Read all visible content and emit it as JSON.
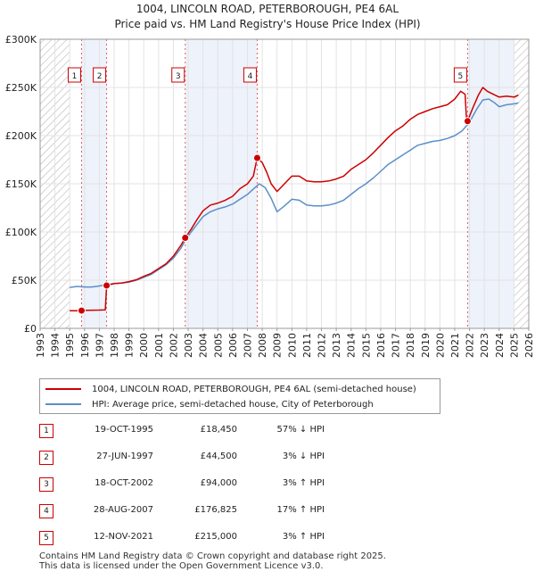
{
  "title_line1": "1004, LINCOLN ROAD, PETERBOROUGH, PE4 6AL",
  "title_line2": "Price paid vs. HM Land Registry's House Price Index (HPI)",
  "chart_data": {
    "type": "line",
    "title": "Price paid vs. HM Land Registry's House Price Index (HPI)",
    "xlabel": "",
    "ylabel": "",
    "xlim": [
      1993,
      2026
    ],
    "ylim": [
      0,
      300000
    ],
    "x_ticks": [
      "1993",
      "1994",
      "1995",
      "1996",
      "1997",
      "1998",
      "1999",
      "2000",
      "2001",
      "2002",
      "2003",
      "2004",
      "2005",
      "2006",
      "2007",
      "2008",
      "2009",
      "2010",
      "2011",
      "2012",
      "2013",
      "2014",
      "2015",
      "2016",
      "2017",
      "2018",
      "2019",
      "2020",
      "2021",
      "2022",
      "2023",
      "2024",
      "2025",
      "2026"
    ],
    "y_ticks": [
      {
        "value": 0,
        "label": "£0"
      },
      {
        "value": 50000,
        "label": "£50K"
      },
      {
        "value": 100000,
        "label": "£100K"
      },
      {
        "value": 150000,
        "label": "£150K"
      },
      {
        "value": 200000,
        "label": "£200K"
      },
      {
        "value": 250000,
        "label": "£250K"
      },
      {
        "value": 300000,
        "label": "£300K"
      }
    ],
    "grid": true,
    "hatched_before": 1995.0,
    "hatched_after": 2025.0,
    "series": [
      {
        "name": "1004, LINCOLN ROAD, PETERBOROUGH, PE4 6AL (semi-detached house)",
        "color": "#cc0000",
        "points": [
          [
            1995.0,
            18200
          ],
          [
            1995.4,
            18300
          ],
          [
            1995.8,
            18450
          ],
          [
            1996.2,
            18700
          ],
          [
            1996.6,
            18900
          ],
          [
            1997.0,
            19000
          ],
          [
            1997.4,
            19300
          ],
          [
            1997.49,
            44500
          ],
          [
            1998.0,
            46500
          ],
          [
            1998.5,
            47000
          ],
          [
            1999.0,
            48500
          ],
          [
            1999.5,
            50500
          ],
          [
            2000.0,
            54000
          ],
          [
            2000.5,
            57000
          ],
          [
            2001.0,
            62000
          ],
          [
            2001.5,
            67000
          ],
          [
            2002.0,
            75000
          ],
          [
            2002.5,
            86000
          ],
          [
            2002.8,
            94000
          ],
          [
            2003.2,
            103000
          ],
          [
            2003.6,
            113000
          ],
          [
            2004.0,
            122000
          ],
          [
            2004.5,
            128000
          ],
          [
            2005.0,
            130000
          ],
          [
            2005.5,
            133000
          ],
          [
            2006.0,
            137000
          ],
          [
            2006.5,
            145000
          ],
          [
            2007.0,
            150000
          ],
          [
            2007.4,
            158000
          ],
          [
            2007.66,
            176825
          ],
          [
            2008.0,
            172000
          ],
          [
            2008.3,
            162000
          ],
          [
            2008.6,
            150000
          ],
          [
            2009.0,
            142000
          ],
          [
            2009.5,
            150000
          ],
          [
            2010.0,
            158000
          ],
          [
            2010.5,
            158000
          ],
          [
            2011.0,
            153000
          ],
          [
            2011.5,
            152000
          ],
          [
            2012.0,
            152000
          ],
          [
            2012.5,
            153000
          ],
          [
            2013.0,
            155000
          ],
          [
            2013.5,
            158000
          ],
          [
            2014.0,
            165000
          ],
          [
            2014.5,
            170000
          ],
          [
            2015.0,
            175000
          ],
          [
            2015.5,
            182000
          ],
          [
            2016.0,
            190000
          ],
          [
            2016.5,
            198000
          ],
          [
            2017.0,
            205000
          ],
          [
            2017.5,
            210000
          ],
          [
            2018.0,
            217000
          ],
          [
            2018.5,
            222000
          ],
          [
            2019.0,
            225000
          ],
          [
            2019.5,
            228000
          ],
          [
            2020.0,
            230000
          ],
          [
            2020.5,
            232000
          ],
          [
            2021.0,
            238000
          ],
          [
            2021.4,
            246000
          ],
          [
            2021.7,
            243000
          ],
          [
            2021.8,
            215000
          ],
          [
            2021.87,
            215000
          ],
          [
            2022.2,
            228000
          ],
          [
            2022.6,
            242000
          ],
          [
            2022.9,
            250000
          ],
          [
            2023.2,
            246000
          ],
          [
            2023.6,
            243000
          ],
          [
            2024.0,
            240000
          ],
          [
            2024.5,
            241000
          ],
          [
            2025.0,
            240000
          ],
          [
            2025.3,
            242000
          ]
        ]
      },
      {
        "name": "HPI: Average price, semi-detached house, City of Peterborough",
        "color": "#5b8fc7",
        "points": [
          [
            1995.0,
            42500
          ],
          [
            1995.5,
            43500
          ],
          [
            1996.0,
            43000
          ],
          [
            1996.5,
            43000
          ],
          [
            1997.0,
            44000
          ],
          [
            1997.5,
            45500
          ],
          [
            1998.0,
            46500
          ],
          [
            1998.5,
            47000
          ],
          [
            1999.0,
            48000
          ],
          [
            1999.5,
            50000
          ],
          [
            2000.0,
            53000
          ],
          [
            2000.5,
            56000
          ],
          [
            2001.0,
            61000
          ],
          [
            2001.5,
            66000
          ],
          [
            2002.0,
            73000
          ],
          [
            2002.5,
            83000
          ],
          [
            2002.8,
            91000
          ],
          [
            2003.2,
            100000
          ],
          [
            2003.6,
            108000
          ],
          [
            2004.0,
            116000
          ],
          [
            2004.5,
            121000
          ],
          [
            2005.0,
            124000
          ],
          [
            2005.5,
            126000
          ],
          [
            2006.0,
            129000
          ],
          [
            2006.5,
            134000
          ],
          [
            2007.0,
            139000
          ],
          [
            2007.5,
            146000
          ],
          [
            2007.8,
            150000
          ],
          [
            2008.2,
            146000
          ],
          [
            2008.6,
            135000
          ],
          [
            2009.0,
            121000
          ],
          [
            2009.5,
            127000
          ],
          [
            2010.0,
            134000
          ],
          [
            2010.5,
            133000
          ],
          [
            2011.0,
            128000
          ],
          [
            2011.5,
            127000
          ],
          [
            2012.0,
            127000
          ],
          [
            2012.5,
            128000
          ],
          [
            2013.0,
            130000
          ],
          [
            2013.5,
            133000
          ],
          [
            2014.0,
            139000
          ],
          [
            2014.5,
            145000
          ],
          [
            2015.0,
            150000
          ],
          [
            2015.5,
            156000
          ],
          [
            2016.0,
            163000
          ],
          [
            2016.5,
            170000
          ],
          [
            2017.0,
            175000
          ],
          [
            2017.5,
            180000
          ],
          [
            2018.0,
            185000
          ],
          [
            2018.5,
            190000
          ],
          [
            2019.0,
            192000
          ],
          [
            2019.5,
            194000
          ],
          [
            2020.0,
            195000
          ],
          [
            2020.5,
            197000
          ],
          [
            2021.0,
            200000
          ],
          [
            2021.5,
            205000
          ],
          [
            2022.0,
            214000
          ],
          [
            2022.5,
            228000
          ],
          [
            2022.9,
            237000
          ],
          [
            2023.3,
            238000
          ],
          [
            2023.7,
            234000
          ],
          [
            2024.0,
            230000
          ],
          [
            2024.5,
            232000
          ],
          [
            2025.0,
            233000
          ],
          [
            2025.3,
            234000
          ]
        ]
      }
    ],
    "markers": [
      {
        "label": "1",
        "x": 1995.8,
        "y": 18450
      },
      {
        "label": "2",
        "x": 1997.49,
        "y": 44500
      },
      {
        "label": "3",
        "x": 2002.8,
        "y": 94000
      },
      {
        "label": "4",
        "x": 2007.66,
        "y": 176825
      },
      {
        "label": "5",
        "x": 2021.87,
        "y": 215000
      }
    ],
    "shaded_spans": [
      [
        1995.8,
        1997.49
      ],
      [
        2002.8,
        2007.66
      ],
      [
        2021.87,
        2025.0
      ]
    ]
  },
  "legend": {
    "property_label": "1004, LINCOLN ROAD, PETERBOROUGH, PE4 6AL (semi-detached house)",
    "hpi_label": "HPI: Average price, semi-detached house, City of Peterborough",
    "property_color": "#cc0000",
    "hpi_color": "#5b8fc7"
  },
  "transactions": [
    {
      "num": "1",
      "date": "19-OCT-1995",
      "price": "£18,450",
      "hpi": "57% ↓ HPI"
    },
    {
      "num": "2",
      "date": "27-JUN-1997",
      "price": "£44,500",
      "hpi": "3% ↓ HPI"
    },
    {
      "num": "3",
      "date": "18-OCT-2002",
      "price": "£94,000",
      "hpi": "3% ↑ HPI"
    },
    {
      "num": "4",
      "date": "28-AUG-2007",
      "price": "£176,825",
      "hpi": "17% ↑ HPI"
    },
    {
      "num": "5",
      "date": "12-NOV-2021",
      "price": "£215,000",
      "hpi": "3% ↑ HPI"
    }
  ],
  "footer_line1": "Contains HM Land Registry data © Crown copyright and database right 2025.",
  "footer_line2": "This data is licensed under the Open Government Licence v3.0."
}
